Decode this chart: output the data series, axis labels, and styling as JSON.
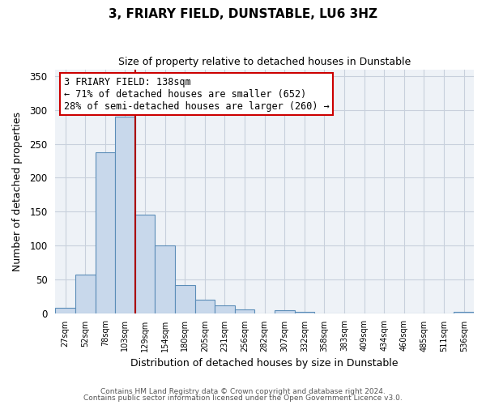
{
  "title": "3, FRIARY FIELD, DUNSTABLE, LU6 3HZ",
  "subtitle": "Size of property relative to detached houses in Dunstable",
  "xlabel": "Distribution of detached houses by size in Dunstable",
  "ylabel": "Number of detached properties",
  "bin_labels": [
    "27sqm",
    "52sqm",
    "78sqm",
    "103sqm",
    "129sqm",
    "154sqm",
    "180sqm",
    "205sqm",
    "231sqm",
    "256sqm",
    "282sqm",
    "307sqm",
    "332sqm",
    "358sqm",
    "383sqm",
    "409sqm",
    "434sqm",
    "460sqm",
    "485sqm",
    "511sqm",
    "536sqm"
  ],
  "bar_values": [
    8,
    57,
    238,
    290,
    145,
    100,
    41,
    20,
    12,
    6,
    0,
    4,
    2,
    0,
    0,
    0,
    0,
    0,
    0,
    0,
    2
  ],
  "bar_color": "#c8d8eb",
  "bar_edge_color": "#5b8db8",
  "ylim": [
    0,
    360
  ],
  "yticks": [
    0,
    50,
    100,
    150,
    200,
    250,
    300,
    350
  ],
  "annotation_title": "3 FRIARY FIELD: 138sqm",
  "annotation_line1": "← 71% of detached houses are smaller (652)",
  "annotation_line2": "28% of semi-detached houses are larger (260) →",
  "annotation_box_facecolor": "#ffffff",
  "annotation_box_edgecolor": "#cc0000",
  "vline_color": "#aa0000",
  "footnote1": "Contains HM Land Registry data © Crown copyright and database right 2024.",
  "footnote2": "Contains public sector information licensed under the Open Government Licence v3.0.",
  "background_color": "#eef2f7",
  "grid_color": "#c8d0dc"
}
